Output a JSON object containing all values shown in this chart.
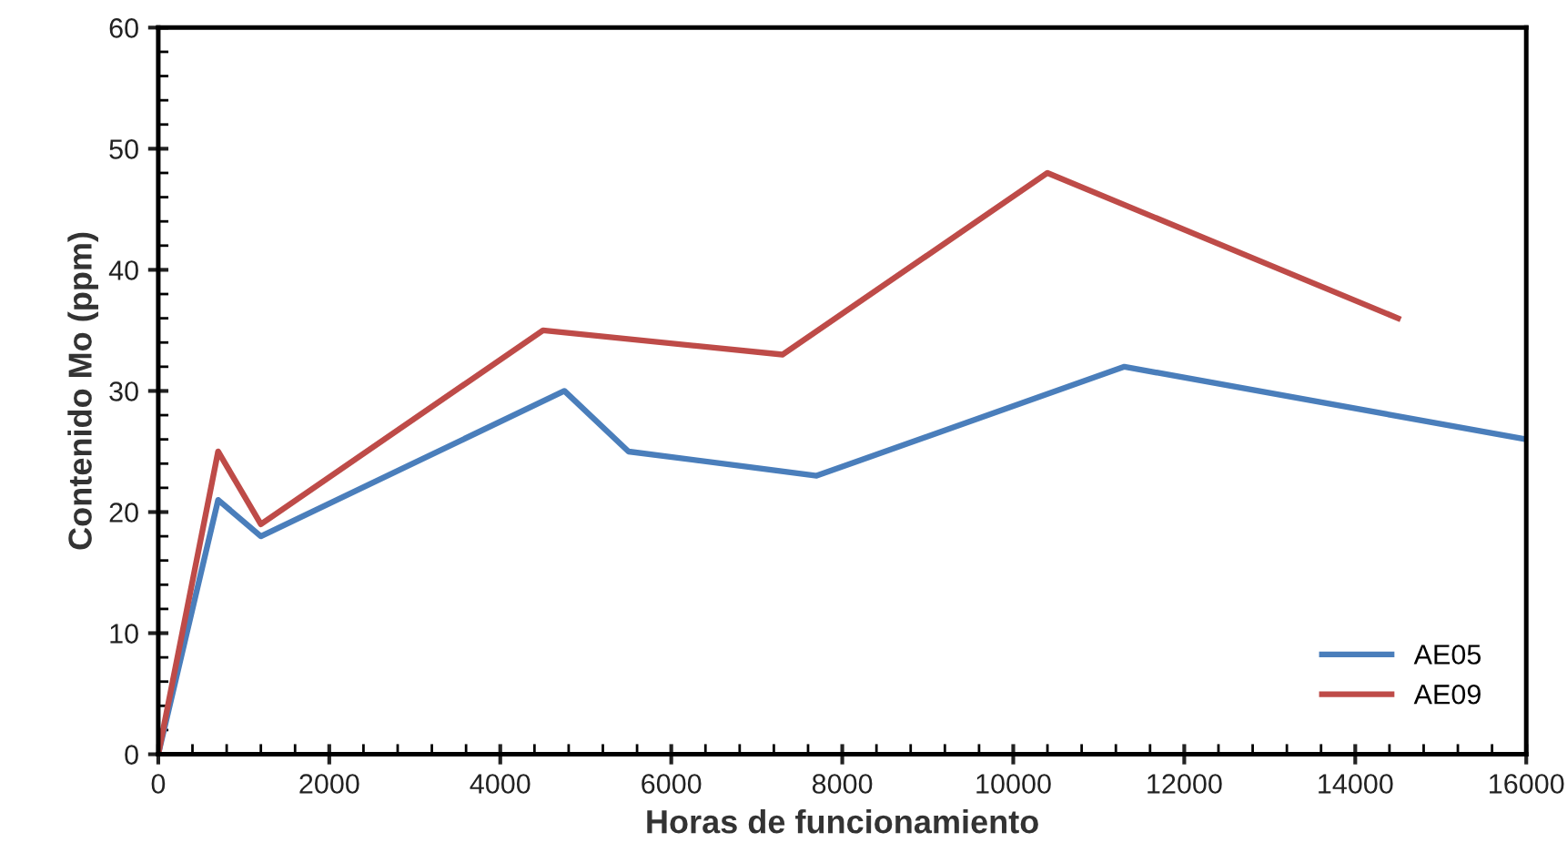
{
  "chart_data": {
    "type": "line",
    "xlabel": "Horas de funcionamiento",
    "ylabel": "Contenido Mo (ppm)",
    "series": [
      {
        "name": "AE05",
        "color": "#4a7ebb",
        "x": [
          0,
          700,
          1200,
          4750,
          5500,
          7700,
          11300,
          16000
        ],
        "values": [
          0,
          21,
          18,
          30,
          25,
          23,
          32,
          26
        ]
      },
      {
        "name": "AE09",
        "color": "#be4b48",
        "x": [
          0,
          700,
          1200,
          4500,
          7300,
          10400,
          14500
        ],
        "values": [
          0,
          25,
          19,
          35,
          33,
          48,
          36
        ]
      }
    ],
    "xlim": [
      0,
      16000
    ],
    "xticks": [
      0,
      2000,
      4000,
      6000,
      8000,
      10000,
      12000,
      14000,
      16000
    ],
    "ylim": [
      0,
      60
    ],
    "yticks": [
      0,
      10,
      20,
      30,
      40,
      50,
      60
    ],
    "grid": false,
    "legend": "bottom right",
    "marker": "none",
    "line_style": "solid"
  }
}
